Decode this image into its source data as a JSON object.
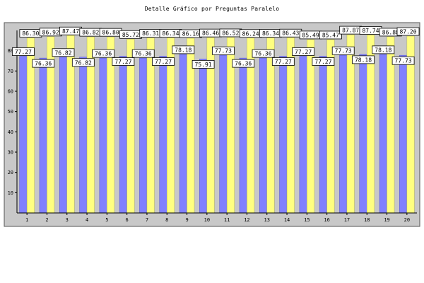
{
  "chart_data": {
    "type": "bar",
    "title": "Detalle Gráfico por Preguntas Paralelo",
    "categories": [
      "1",
      "2",
      "3",
      "4",
      "5",
      "6",
      "7",
      "8",
      "9",
      "10",
      "11",
      "12",
      "13",
      "14",
      "15",
      "16",
      "17",
      "18",
      "19",
      "20"
    ],
    "series": [
      {
        "values": [
          77.27,
          76.36,
          76.82,
          76.82,
          76.36,
          77.27,
          76.36,
          77.27,
          78.18,
          75.91,
          77.73,
          76.36,
          76.36,
          77.27,
          77.27,
          77.27,
          77.73,
          78.18,
          78.18,
          77.73
        ]
      },
      {
        "values": [
          86.3,
          86.92,
          87.47,
          86.82,
          86.8,
          85.72,
          86.31,
          86.34,
          86.16,
          86.46,
          86.52,
          86.24,
          86.34,
          86.43,
          85.49,
          85.47,
          87.87,
          87.74,
          86.88,
          87.2
        ]
      }
    ],
    "ylim": [
      0,
      90
    ],
    "yticks": [
      10,
      20,
      30,
      40,
      50,
      60,
      70,
      80
    ],
    "grid": false
  },
  "colors": {
    "series1": "#8080ff",
    "series2": "#ffff80",
    "plot_background": "#c8c8c8",
    "axis": "#000000"
  }
}
